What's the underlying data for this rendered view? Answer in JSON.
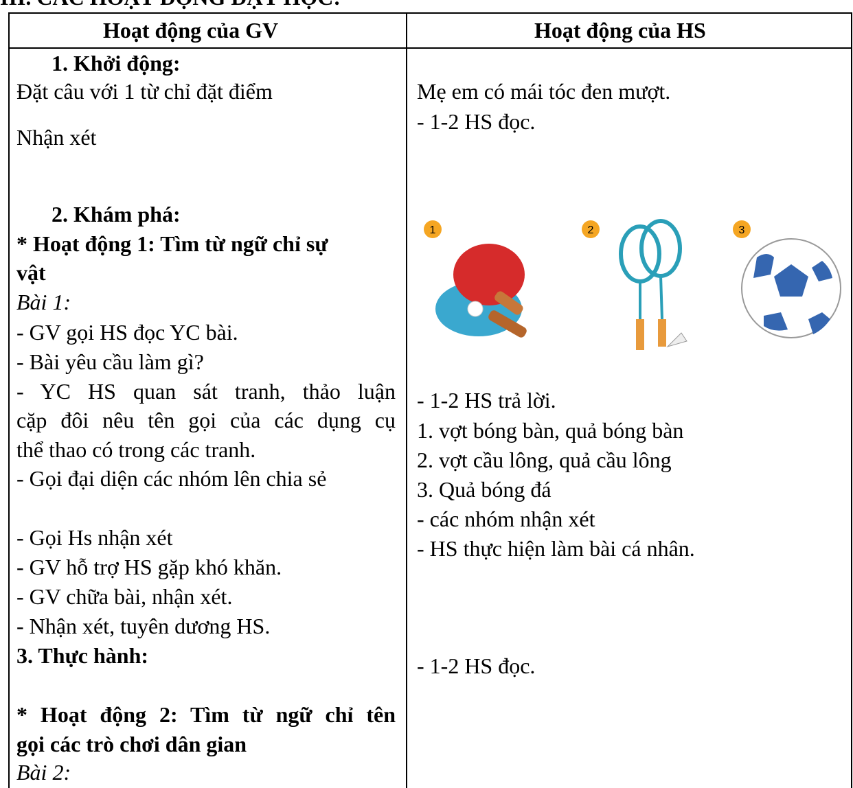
{
  "heading": "III. CÁC HOẠT ĐỘNG DẠY HỌC:",
  "table": {
    "headers": [
      "Hoạt động của GV",
      "Hoạt động của HS"
    ],
    "left": [
      "1. Khởi động:",
      "Đặt câu với 1 từ chỉ đặt điểm",
      "Nhận xét",
      "2. Khám phá:",
      "* Hoạt động 1: Tìm từ ngữ chỉ sự",
      "vật",
      "Bài 1:",
      "- GV gọi HS đọc YC bài.",
      "- Bài yêu cầu làm gì?",
      "- YC HS quan sát tranh, thảo luận",
      "cặp đôi nêu tên gọi của các dụng cụ",
      "thể thao có trong các tranh.",
      "- Gọi đại diện các nhóm lên chia sẻ",
      "- Gọi Hs nhận xét",
      "- GV hỗ trợ HS gặp khó khăn.",
      "- GV chữa bài, nhận xét.",
      "- Nhận xét, tuyên dương HS.",
      "3. Thực hành:",
      "* Hoạt động 2: Tìm từ ngữ chỉ tên",
      "gọi các trò chơi dân gian",
      "Bài 2:"
    ],
    "right": [
      "Mẹ em có mái tóc đen mượt.",
      "- 1-2 HS đọc.",
      "- 1-2 HS trả lời.",
      "1. vợt bóng bàn, quả bóng bàn",
      "2. vợt cầu lông, quả cầu lông",
      "3. Quả bóng đá",
      "- các nhóm nhận xét",
      "- HS thực hiện làm bài cá nhân.",
      "- 1-2 HS đọc."
    ],
    "figure_labels": [
      "1",
      "2",
      "3"
    ]
  }
}
